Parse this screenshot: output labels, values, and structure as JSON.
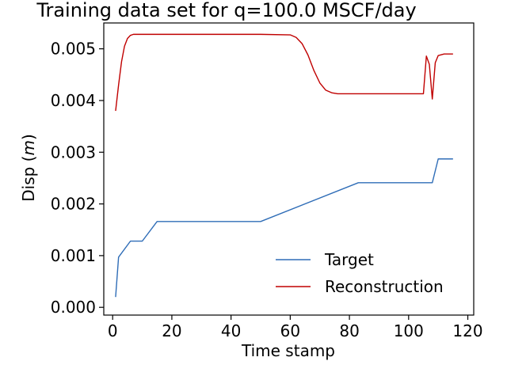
{
  "chart_data": {
    "type": "line",
    "title": "Training data set for q=100.0 MSCF/day",
    "xlabel": "Time stamp",
    "ylabel_prefix": "Disp (",
    "ylabel_unit": "m",
    "ylabel_suffix": ")",
    "xlim": [
      -3,
      122
    ],
    "ylim": [
      -0.00015,
      0.0055
    ],
    "xticks": [
      0,
      20,
      40,
      60,
      80,
      100,
      120
    ],
    "xtick_labels": [
      "0",
      "20",
      "40",
      "60",
      "80",
      "100",
      "120"
    ],
    "yticks": [
      0.0,
      0.001,
      0.002,
      0.003,
      0.004,
      0.005
    ],
    "ytick_labels": [
      "0.000",
      "0.001",
      "0.002",
      "0.003",
      "0.004",
      "0.005"
    ],
    "grid": false,
    "legend_position": "lower-right",
    "series": [
      {
        "name": "Target",
        "color": "#2f6db7",
        "x": [
          1,
          2,
          6,
          10,
          15,
          20,
          50,
          83,
          108,
          110,
          115
        ],
        "y": [
          0.0002,
          0.00097,
          0.00128,
          0.00128,
          0.00166,
          0.00166,
          0.00166,
          0.00241,
          0.00241,
          0.00287,
          0.00287
        ]
      },
      {
        "name": "Reconstruction",
        "color": "#c00000",
        "x": [
          1,
          2,
          3,
          4,
          5,
          6,
          7,
          8,
          9,
          10,
          15,
          20,
          30,
          40,
          50,
          60,
          62,
          64,
          66,
          68,
          70,
          72,
          74,
          76,
          80,
          90,
          100,
          105,
          106,
          107,
          108,
          109,
          110,
          112,
          115
        ],
        "y": [
          0.0038,
          0.0043,
          0.00475,
          0.00505,
          0.0052,
          0.00526,
          0.00528,
          0.00528,
          0.00528,
          0.00528,
          0.00528,
          0.00528,
          0.00528,
          0.00528,
          0.00528,
          0.00527,
          0.00522,
          0.0051,
          0.00488,
          0.00458,
          0.00434,
          0.0042,
          0.00415,
          0.00413,
          0.00413,
          0.00413,
          0.00413,
          0.00413,
          0.00486,
          0.0047,
          0.00403,
          0.00473,
          0.00487,
          0.0049,
          0.0049
        ]
      }
    ]
  }
}
